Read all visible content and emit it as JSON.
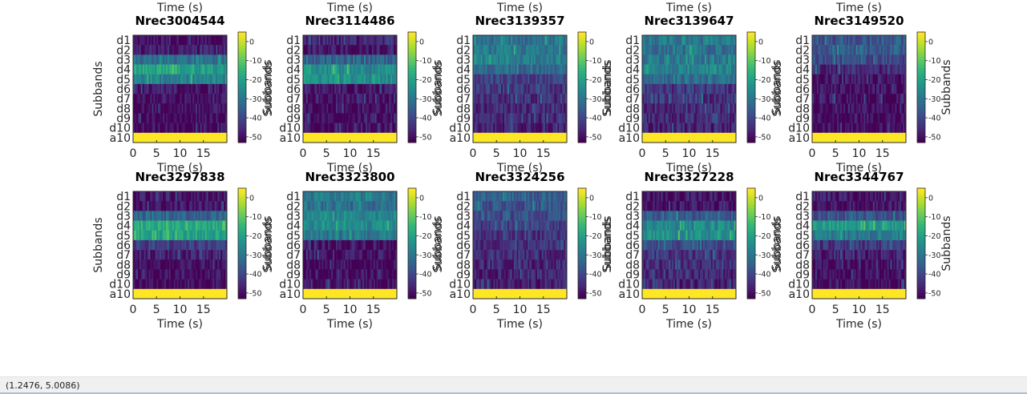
{
  "colors": {
    "cmap": [
      "#440154",
      "#482878",
      "#3e4989",
      "#31688e",
      "#26828e",
      "#1f9e89",
      "#35b779",
      "#6ece58",
      "#b5de2b",
      "#fde725"
    ],
    "background": "#ffffff",
    "statusbar": "#f0f0f0"
  },
  "status_bar": {
    "coords": "(1.2476, 5.0086)"
  },
  "chart_data": [
    {
      "type": "heatmap",
      "title": "",
      "xlabel": "Time (s)",
      "ylabel": "",
      "xticks": [
        "0",
        "5",
        "10",
        "15"
      ],
      "yticks": [],
      "colorbar_ticks": [],
      "partial": true
    },
    {
      "type": "heatmap",
      "title": "",
      "xlabel": "Time (s)",
      "ylabel": "",
      "xticks": [
        "0",
        "5",
        "10",
        "15"
      ],
      "yticks": [],
      "colorbar_ticks": [],
      "partial": true
    },
    {
      "type": "heatmap",
      "title": "",
      "xlabel": "Time (s)",
      "ylabel": "",
      "xticks": [
        "0",
        "5",
        "10",
        "15"
      ],
      "yticks": [],
      "colorbar_ticks": [],
      "partial": true
    },
    {
      "type": "heatmap",
      "title": "",
      "xlabel": "Time (s)",
      "ylabel": "",
      "xticks": [
        "0",
        "5",
        "10",
        "15"
      ],
      "yticks": [],
      "colorbar_ticks": [],
      "partial": true
    },
    {
      "type": "heatmap",
      "title": "",
      "xlabel": "Time (s)",
      "ylabel": "",
      "xticks": [
        "0",
        "5",
        "10",
        "15"
      ],
      "yticks": [],
      "colorbar_ticks": [],
      "partial": true
    },
    {
      "type": "heatmap",
      "title": "Nrec3004544",
      "xlabel": "Time (s)",
      "ylabel": "Subbands",
      "colorbar_label": "Subbands",
      "xticks": [
        "0",
        "5",
        "10",
        "15"
      ],
      "xlim": [
        0,
        20
      ],
      "yticks": [
        "d1",
        "d2",
        "d3",
        "d4",
        "d5",
        "d6",
        "d7",
        "d8",
        "d9",
        "d10",
        "a10"
      ],
      "colorbar_ticks": [
        "0",
        "-10",
        "-20",
        "-30",
        "-40",
        "-50"
      ],
      "clim": [
        -53,
        5
      ],
      "row_levels_db": [
        -51,
        -49,
        -32,
        -20,
        -28,
        -50,
        -51,
        -52,
        -52,
        -52,
        5
      ]
    },
    {
      "type": "heatmap",
      "title": "Nrec3114486",
      "xlabel": "Time (s)",
      "ylabel": "Subbands",
      "colorbar_label": "Subbands",
      "xticks": [
        "0",
        "5",
        "10",
        "15"
      ],
      "xlim": [
        0,
        20
      ],
      "yticks": [
        "d1",
        "d2",
        "d3",
        "d4",
        "d5",
        "d6",
        "d7",
        "d8",
        "d9",
        "d10",
        "a10"
      ],
      "colorbar_ticks": [
        "0",
        "-10",
        "-20",
        "-30",
        "-40",
        "-50"
      ],
      "clim": [
        -53,
        5
      ],
      "row_levels_db": [
        -48,
        -50,
        -35,
        -25,
        -24,
        -50,
        -51,
        -52,
        -52,
        -52,
        5
      ]
    },
    {
      "type": "heatmap",
      "title": "Nrec3139357",
      "xlabel": "Time (s)",
      "ylabel": "Subbands",
      "colorbar_label": "Subbands",
      "xticks": [
        "0",
        "5",
        "10",
        "15"
      ],
      "xlim": [
        0,
        20
      ],
      "yticks": [
        "d1",
        "d2",
        "d3",
        "d4",
        "d5",
        "d6",
        "d7",
        "d8",
        "d9",
        "d10",
        "a10"
      ],
      "colorbar_ticks": [
        "0",
        "-10",
        "-20",
        "-30",
        "-40",
        "-50"
      ],
      "clim": [
        -53,
        5
      ],
      "row_levels_db": [
        -32,
        -30,
        -28,
        -33,
        -42,
        -44,
        -45,
        -46,
        -46,
        -47,
        5
      ]
    },
    {
      "type": "heatmap",
      "title": "Nrec3139647",
      "xlabel": "Time (s)",
      "ylabel": "Subbands",
      "colorbar_label": "Subbands",
      "xticks": [
        "0",
        "5",
        "10",
        "15"
      ],
      "xlim": [
        0,
        20
      ],
      "yticks": [
        "d1",
        "d2",
        "d3",
        "d4",
        "d5",
        "d6",
        "d7",
        "d8",
        "d9",
        "d10",
        "a10"
      ],
      "colorbar_ticks": [
        "0",
        "-10",
        "-20",
        "-30",
        "-40",
        "-50"
      ],
      "clim": [
        -53,
        5
      ],
      "row_levels_db": [
        -30,
        -32,
        -30,
        -28,
        -32,
        -44,
        -45,
        -46,
        -46,
        -47,
        5
      ]
    },
    {
      "type": "heatmap",
      "title": "Nrec3149520",
      "xlabel": "Time (s)",
      "ylabel": "Subbands",
      "colorbar_label": "Subbands",
      "xticks": [
        "0",
        "5",
        "10",
        "15"
      ],
      "xlim": [
        0,
        20
      ],
      "yticks": [
        "d1",
        "d2",
        "d3",
        "d4",
        "d5",
        "d6",
        "d7",
        "d8",
        "d9",
        "d10",
        "a10"
      ],
      "colorbar_ticks": [
        "0",
        "-10",
        "-20",
        "-30",
        "-40",
        "-50"
      ],
      "clim": [
        -53,
        5
      ],
      "row_levels_db": [
        -38,
        -36,
        -40,
        -46,
        -50,
        -51,
        -51,
        -52,
        -52,
        -52,
        5
      ]
    },
    {
      "type": "heatmap",
      "title": "Nrec3297838",
      "xlabel": "Time (s)",
      "ylabel": "Subbands",
      "colorbar_label": "Subbands",
      "xticks": [
        "0",
        "5",
        "10",
        "15"
      ],
      "xlim": [
        0,
        20
      ],
      "yticks": [
        "d1",
        "d2",
        "d3",
        "d4",
        "d5",
        "d6",
        "d7",
        "d8",
        "d9",
        "d10",
        "a10"
      ],
      "colorbar_ticks": [
        "0",
        "-10",
        "-20",
        "-30",
        "-40",
        "-50"
      ],
      "clim": [
        -53,
        5
      ],
      "row_levels_db": [
        -50,
        -50,
        -34,
        -18,
        -20,
        -42,
        -48,
        -52,
        -52,
        -52,
        5
      ]
    },
    {
      "type": "heatmap",
      "title": "Nrec3323800",
      "xlabel": "Time (s)",
      "ylabel": "Subbands",
      "colorbar_label": "Subbands",
      "xticks": [
        "0",
        "5",
        "10",
        "15"
      ],
      "xlim": [
        0,
        20
      ],
      "yticks": [
        "d1",
        "d2",
        "d3",
        "d4",
        "d5",
        "d6",
        "d7",
        "d8",
        "d9",
        "d10",
        "a10"
      ],
      "colorbar_ticks": [
        "0",
        "-10",
        "-20",
        "-30",
        "-40",
        "-50"
      ],
      "clim": [
        -53,
        5
      ],
      "row_levels_db": [
        -30,
        -32,
        -26,
        -26,
        -30,
        -50,
        -51,
        -52,
        -52,
        -52,
        5
      ]
    },
    {
      "type": "heatmap",
      "title": "Nrec3324256",
      "xlabel": "Time (s)",
      "ylabel": "Subbands",
      "colorbar_label": "Subbands",
      "xticks": [
        "0",
        "5",
        "10",
        "15"
      ],
      "xlim": [
        0,
        20
      ],
      "yticks": [
        "d1",
        "d2",
        "d3",
        "d4",
        "d5",
        "d6",
        "d7",
        "d8",
        "d9",
        "d10",
        "a10"
      ],
      "colorbar_ticks": [
        "0",
        "-10",
        "-20",
        "-30",
        "-40",
        "-50"
      ],
      "clim": [
        -53,
        5
      ],
      "row_levels_db": [
        -36,
        -38,
        -40,
        -42,
        -44,
        -45,
        -46,
        -47,
        -47,
        -48,
        5
      ]
    },
    {
      "type": "heatmap",
      "title": "Nrec3327228",
      "xlabel": "Time (s)",
      "ylabel": "Subbands",
      "colorbar_label": "Subbands",
      "xticks": [
        "0",
        "5",
        "10",
        "15"
      ],
      "xlim": [
        0,
        20
      ],
      "yticks": [
        "d1",
        "d2",
        "d3",
        "d4",
        "d5",
        "d6",
        "d7",
        "d8",
        "d9",
        "d10",
        "a10"
      ],
      "colorbar_ticks": [
        "0",
        "-10",
        "-20",
        "-30",
        "-40",
        "-50"
      ],
      "clim": [
        -53,
        5
      ],
      "row_levels_db": [
        -51,
        -50,
        -36,
        -26,
        -24,
        -40,
        -44,
        -46,
        -47,
        -48,
        5
      ]
    },
    {
      "type": "heatmap",
      "title": "Nrec3344767",
      "xlabel": "Time (s)",
      "ylabel": "Subbands",
      "colorbar_label": "Subbands",
      "xticks": [
        "0",
        "5",
        "10",
        "15"
      ],
      "xlim": [
        0,
        20
      ],
      "yticks": [
        "d1",
        "d2",
        "d3",
        "d4",
        "d5",
        "d6",
        "d7",
        "d8",
        "d9",
        "d10",
        "a10"
      ],
      "colorbar_ticks": [
        "0",
        "-10",
        "-20",
        "-30",
        "-40",
        "-50"
      ],
      "clim": [
        -53,
        5
      ],
      "row_levels_db": [
        -50,
        -50,
        -38,
        -22,
        -30,
        -44,
        -48,
        -52,
        -52,
        -52,
        5
      ]
    }
  ]
}
